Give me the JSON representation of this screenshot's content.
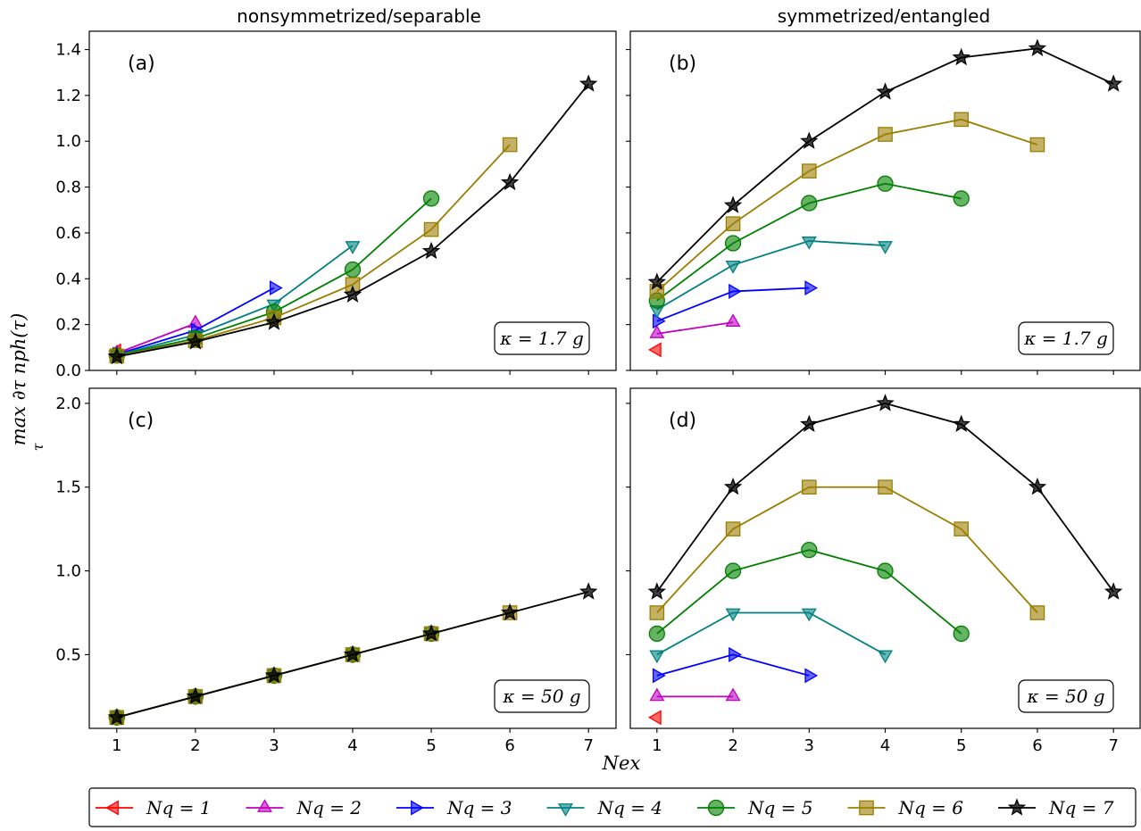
{
  "figure": {
    "col_titles": [
      "nonsymmetrized/separable",
      "symmetrized/entangled"
    ],
    "ylabel": "max ∂τ nph(τ)",
    "ylabel_sub": "τ",
    "xlabel": "Nex"
  },
  "legend": {
    "entries": [
      {
        "label": "Nq = 1",
        "color": "#ff0000",
        "marker": "triangle-left"
      },
      {
        "label": "Nq = 2",
        "color": "#bf00bf",
        "marker": "triangle-up"
      },
      {
        "label": "Nq = 3",
        "color": "#0000ff",
        "marker": "triangle-right"
      },
      {
        "label": "Nq = 4",
        "color": "#008080",
        "marker": "triangle-down"
      },
      {
        "label": "Nq = 5",
        "color": "#008000",
        "marker": "circle"
      },
      {
        "label": "Nq = 6",
        "color": "#9b7d00",
        "marker": "square"
      },
      {
        "label": "Nq = 7",
        "color": "#000000",
        "marker": "star"
      }
    ]
  },
  "chart_data": [
    {
      "panel": "(a)",
      "type": "line",
      "kappa_label": "κ = 1.7 g",
      "xlim": [
        0.65,
        7.35
      ],
      "ylim": [
        0,
        1.48
      ],
      "yticks": [
        0.0,
        0.2,
        0.4,
        0.6,
        0.8,
        1.0,
        1.2,
        1.4
      ],
      "ytick_labels": [
        "0.0",
        "0.2",
        "0.4",
        "0.6",
        "0.8",
        "1.0",
        "1.2",
        "1.4"
      ],
      "xticks": [
        1,
        2,
        3,
        4,
        5,
        6,
        7
      ],
      "series": [
        {
          "name": "Nq = 1",
          "x": [
            1
          ],
          "y": [
            0.085
          ]
        },
        {
          "name": "Nq = 2",
          "x": [
            1,
            2
          ],
          "y": [
            0.075,
            0.205
          ]
        },
        {
          "name": "Nq = 3",
          "x": [
            1,
            2,
            3
          ],
          "y": [
            0.07,
            0.175,
            0.36
          ]
        },
        {
          "name": "Nq = 4",
          "x": [
            1,
            2,
            3,
            4
          ],
          "y": [
            0.067,
            0.155,
            0.29,
            0.545
          ]
        },
        {
          "name": "Nq = 5",
          "x": [
            1,
            2,
            3,
            4,
            5
          ],
          "y": [
            0.065,
            0.14,
            0.255,
            0.44,
            0.75
          ]
        },
        {
          "name": "Nq = 6",
          "x": [
            1,
            2,
            3,
            4,
            5,
            6
          ],
          "y": [
            0.063,
            0.13,
            0.23,
            0.375,
            0.615,
            0.985
          ]
        },
        {
          "name": "Nq = 7",
          "x": [
            1,
            2,
            3,
            4,
            5,
            6,
            7
          ],
          "y": [
            0.06,
            0.125,
            0.21,
            0.33,
            0.52,
            0.82,
            1.25
          ]
        }
      ]
    },
    {
      "panel": "(b)",
      "type": "line",
      "kappa_label": "κ = 1.7 g",
      "xlim": [
        0.65,
        7.35
      ],
      "ylim": [
        0,
        1.48
      ],
      "yticks": [
        0.0,
        0.2,
        0.4,
        0.6,
        0.8,
        1.0,
        1.2,
        1.4
      ],
      "ytick_labels": [],
      "xticks": [
        1,
        2,
        3,
        4,
        5,
        6,
        7
      ],
      "series": [
        {
          "name": "Nq = 1",
          "x": [
            1
          ],
          "y": [
            0.09
          ]
        },
        {
          "name": "Nq = 2",
          "x": [
            1,
            2
          ],
          "y": [
            0.16,
            0.21
          ]
        },
        {
          "name": "Nq = 3",
          "x": [
            1,
            2,
            3
          ],
          "y": [
            0.215,
            0.345,
            0.36
          ]
        },
        {
          "name": "Nq = 4",
          "x": [
            1,
            2,
            3,
            4
          ],
          "y": [
            0.265,
            0.46,
            0.565,
            0.545
          ]
        },
        {
          "name": "Nq = 5",
          "x": [
            1,
            2,
            3,
            4,
            5
          ],
          "y": [
            0.305,
            0.555,
            0.73,
            0.815,
            0.75
          ]
        },
        {
          "name": "Nq = 6",
          "x": [
            1,
            2,
            3,
            4,
            5,
            6
          ],
          "y": [
            0.345,
            0.64,
            0.87,
            1.03,
            1.095,
            0.985
          ]
        },
        {
          "name": "Nq = 7",
          "x": [
            1,
            2,
            3,
            4,
            5,
            6,
            7
          ],
          "y": [
            0.385,
            0.72,
            1.0,
            1.215,
            1.365,
            1.405,
            1.25
          ]
        }
      ]
    },
    {
      "panel": "(c)",
      "type": "line",
      "kappa_label": "κ = 50 g",
      "xlim": [
        0.65,
        7.35
      ],
      "ylim": [
        0.06,
        2.09
      ],
      "yticks": [
        0.5,
        1.0,
        1.5,
        2.0
      ],
      "ytick_labels": [
        "0.5",
        "1.0",
        "1.5",
        "2.0"
      ],
      "xticks": [
        1,
        2,
        3,
        4,
        5,
        6,
        7
      ],
      "xtick_labels": [
        "1",
        "2",
        "3",
        "4",
        "5",
        "6",
        "7"
      ],
      "series": [
        {
          "name": "Nq = 1",
          "x": [
            1
          ],
          "y": [
            0.125
          ]
        },
        {
          "name": "Nq = 2",
          "x": [
            1,
            2
          ],
          "y": [
            0.125,
            0.25
          ]
        },
        {
          "name": "Nq = 3",
          "x": [
            1,
            2,
            3
          ],
          "y": [
            0.125,
            0.25,
            0.375
          ]
        },
        {
          "name": "Nq = 4",
          "x": [
            1,
            2,
            3,
            4
          ],
          "y": [
            0.125,
            0.25,
            0.375,
            0.5
          ]
        },
        {
          "name": "Nq = 5",
          "x": [
            1,
            2,
            3,
            4,
            5
          ],
          "y": [
            0.125,
            0.25,
            0.375,
            0.5,
            0.625
          ]
        },
        {
          "name": "Nq = 6",
          "x": [
            1,
            2,
            3,
            4,
            5,
            6
          ],
          "y": [
            0.125,
            0.25,
            0.375,
            0.5,
            0.625,
            0.75
          ]
        },
        {
          "name": "Nq = 7",
          "x": [
            1,
            2,
            3,
            4,
            5,
            6,
            7
          ],
          "y": [
            0.125,
            0.25,
            0.375,
            0.5,
            0.625,
            0.75,
            0.875
          ]
        }
      ]
    },
    {
      "panel": "(d)",
      "type": "line",
      "kappa_label": "κ = 50 g",
      "xlim": [
        0.65,
        7.35
      ],
      "ylim": [
        0.06,
        2.09
      ],
      "yticks": [
        0.5,
        1.0,
        1.5,
        2.0
      ],
      "ytick_labels": [],
      "xticks": [
        1,
        2,
        3,
        4,
        5,
        6,
        7
      ],
      "xtick_labels": [
        "1",
        "2",
        "3",
        "4",
        "5",
        "6",
        "7"
      ],
      "series": [
        {
          "name": "Nq = 1",
          "x": [
            1
          ],
          "y": [
            0.125
          ]
        },
        {
          "name": "Nq = 2",
          "x": [
            1,
            2
          ],
          "y": [
            0.25,
            0.25
          ]
        },
        {
          "name": "Nq = 3",
          "x": [
            1,
            2,
            3
          ],
          "y": [
            0.375,
            0.5,
            0.375
          ]
        },
        {
          "name": "Nq = 4",
          "x": [
            1,
            2,
            3,
            4
          ],
          "y": [
            0.5,
            0.75,
            0.75,
            0.5
          ]
        },
        {
          "name": "Nq = 5",
          "x": [
            1,
            2,
            3,
            4,
            5
          ],
          "y": [
            0.625,
            1.0,
            1.125,
            1.0,
            0.625
          ]
        },
        {
          "name": "Nq = 6",
          "x": [
            1,
            2,
            3,
            4,
            5,
            6
          ],
          "y": [
            0.75,
            1.25,
            1.5,
            1.5,
            1.25,
            0.75
          ]
        },
        {
          "name": "Nq = 7",
          "x": [
            1,
            2,
            3,
            4,
            5,
            6,
            7
          ],
          "y": [
            0.875,
            1.5,
            1.875,
            2.0,
            1.875,
            1.5,
            0.875
          ]
        }
      ]
    }
  ]
}
